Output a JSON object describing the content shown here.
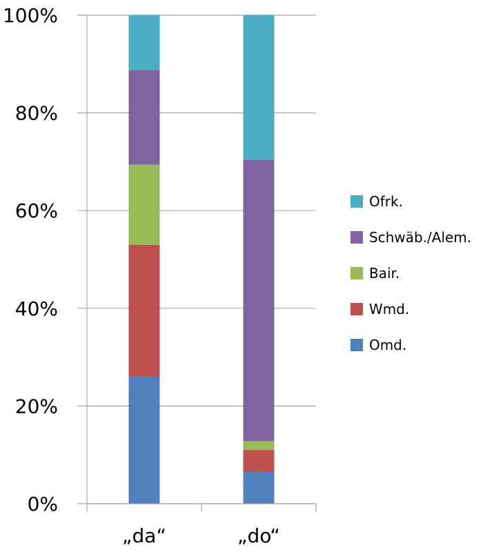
{
  "chart_data": {
    "type": "bar",
    "stacked": true,
    "percent": true,
    "categories": [
      "„da“",
      "„do“"
    ],
    "y_ticks": [
      "0%",
      "20%",
      "40%",
      "60%",
      "80%",
      "100%"
    ],
    "ylim": [
      0,
      100
    ],
    "grid": true,
    "legend_position": "right",
    "series": [
      {
        "name": "Omd.",
        "color": "#4f81bd",
        "values": [
          26.0,
          6.5
        ]
      },
      {
        "name": "Wmd.",
        "color": "#c0504d",
        "values": [
          27.0,
          4.5
        ]
      },
      {
        "name": "Bair.",
        "color": "#9bbb59",
        "values": [
          16.4,
          1.8
        ]
      },
      {
        "name": "Schwäb./Alem.",
        "color": "#8064a2",
        "values": [
          19.4,
          57.6
        ]
      },
      {
        "name": "Ofrk.",
        "color": "#4bacc6",
        "values": [
          11.2,
          29.6
        ]
      }
    ]
  }
}
